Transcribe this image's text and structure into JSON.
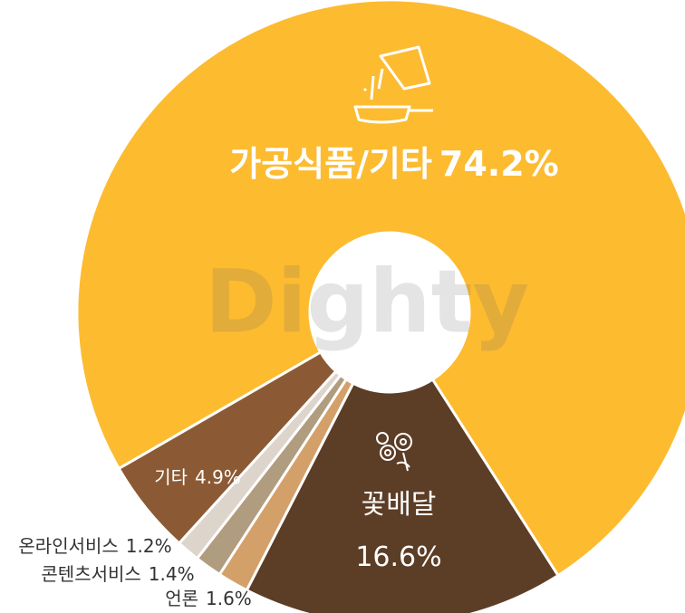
{
  "chart_data": {
    "type": "donut",
    "watermark": "Dighty",
    "categories": [
      "가공식품/기타",
      "꽃배달",
      "언론",
      "콘텐츠서비스",
      "온라인서비스",
      "기타"
    ],
    "values": [
      74.2,
      16.6,
      1.6,
      1.4,
      1.2,
      4.9
    ],
    "value_labels": [
      "74.2%",
      "16.6%",
      "1.6%",
      "1.4%",
      "1.2%",
      "4.9%"
    ],
    "colors": [
      "#fdbb30",
      "#5c3d26",
      "#d4a06a",
      "#b09c7e",
      "#ddd5cc",
      "#8b5a34"
    ]
  }
}
